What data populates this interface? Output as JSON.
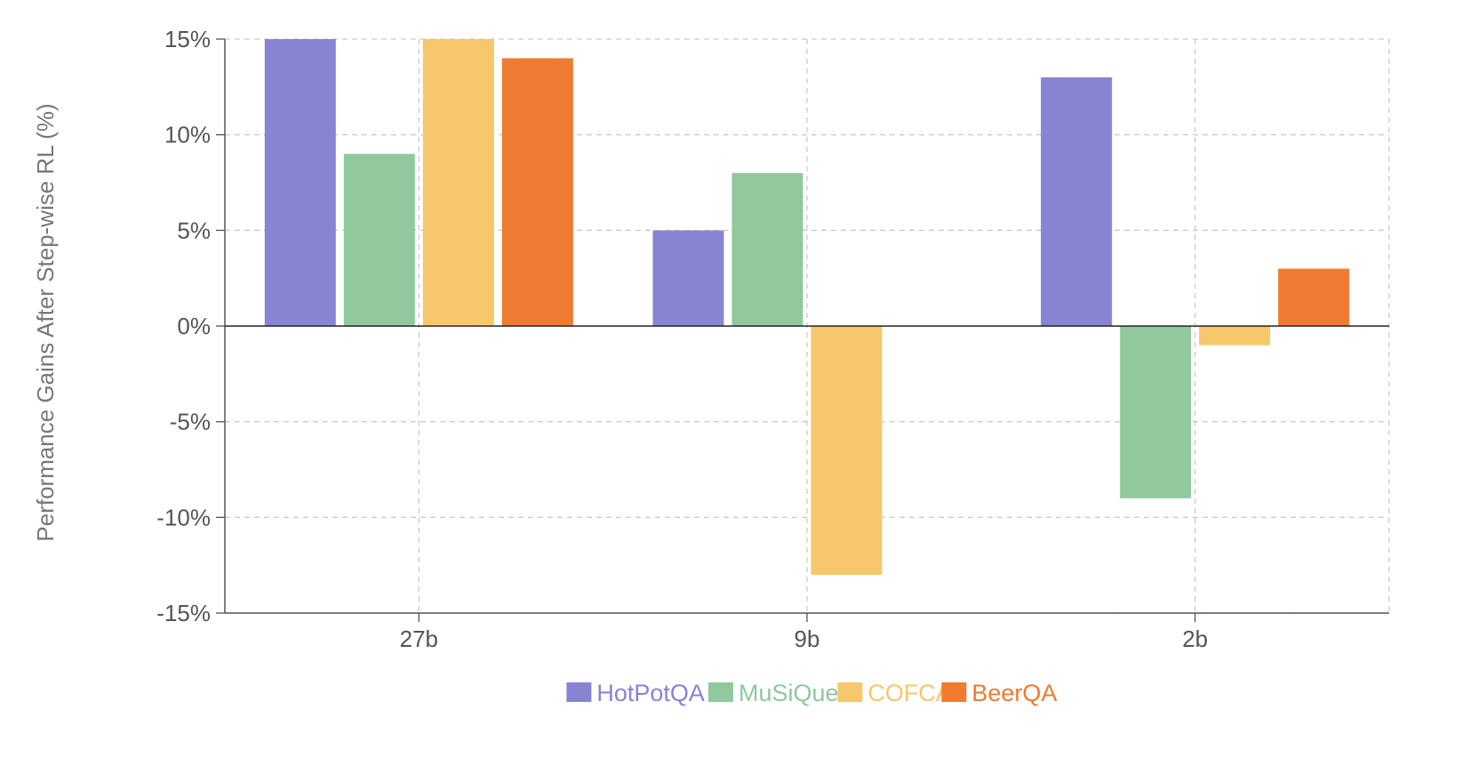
{
  "chart_data": {
    "type": "bar",
    "categories": [
      "27b",
      "9b",
      "2b"
    ],
    "series": [
      {
        "name": "HotPotQA",
        "color": "#8884d3",
        "values": [
          15,
          5,
          13
        ]
      },
      {
        "name": "MuSiQue",
        "color": "#91c89e",
        "values": [
          9,
          8,
          -9
        ]
      },
      {
        "name": "COFCA",
        "color": "#f6c76b",
        "values": [
          15,
          -13,
          -1
        ]
      },
      {
        "name": "BeerQA",
        "color": "#ee7b31",
        "values": [
          14,
          0,
          3
        ]
      }
    ],
    "ylabel": "Performance Gains After Step-wise RL (%)",
    "ylim": [
      -15,
      15
    ],
    "yticks": [
      15,
      10,
      5,
      0,
      -5,
      -10,
      -15
    ],
    "ytick_labels": [
      "15%",
      "10%",
      "5%",
      "0%",
      "-5%",
      "-10%",
      "-15%"
    ],
    "grid": true,
    "legend_position": "bottom-center"
  }
}
